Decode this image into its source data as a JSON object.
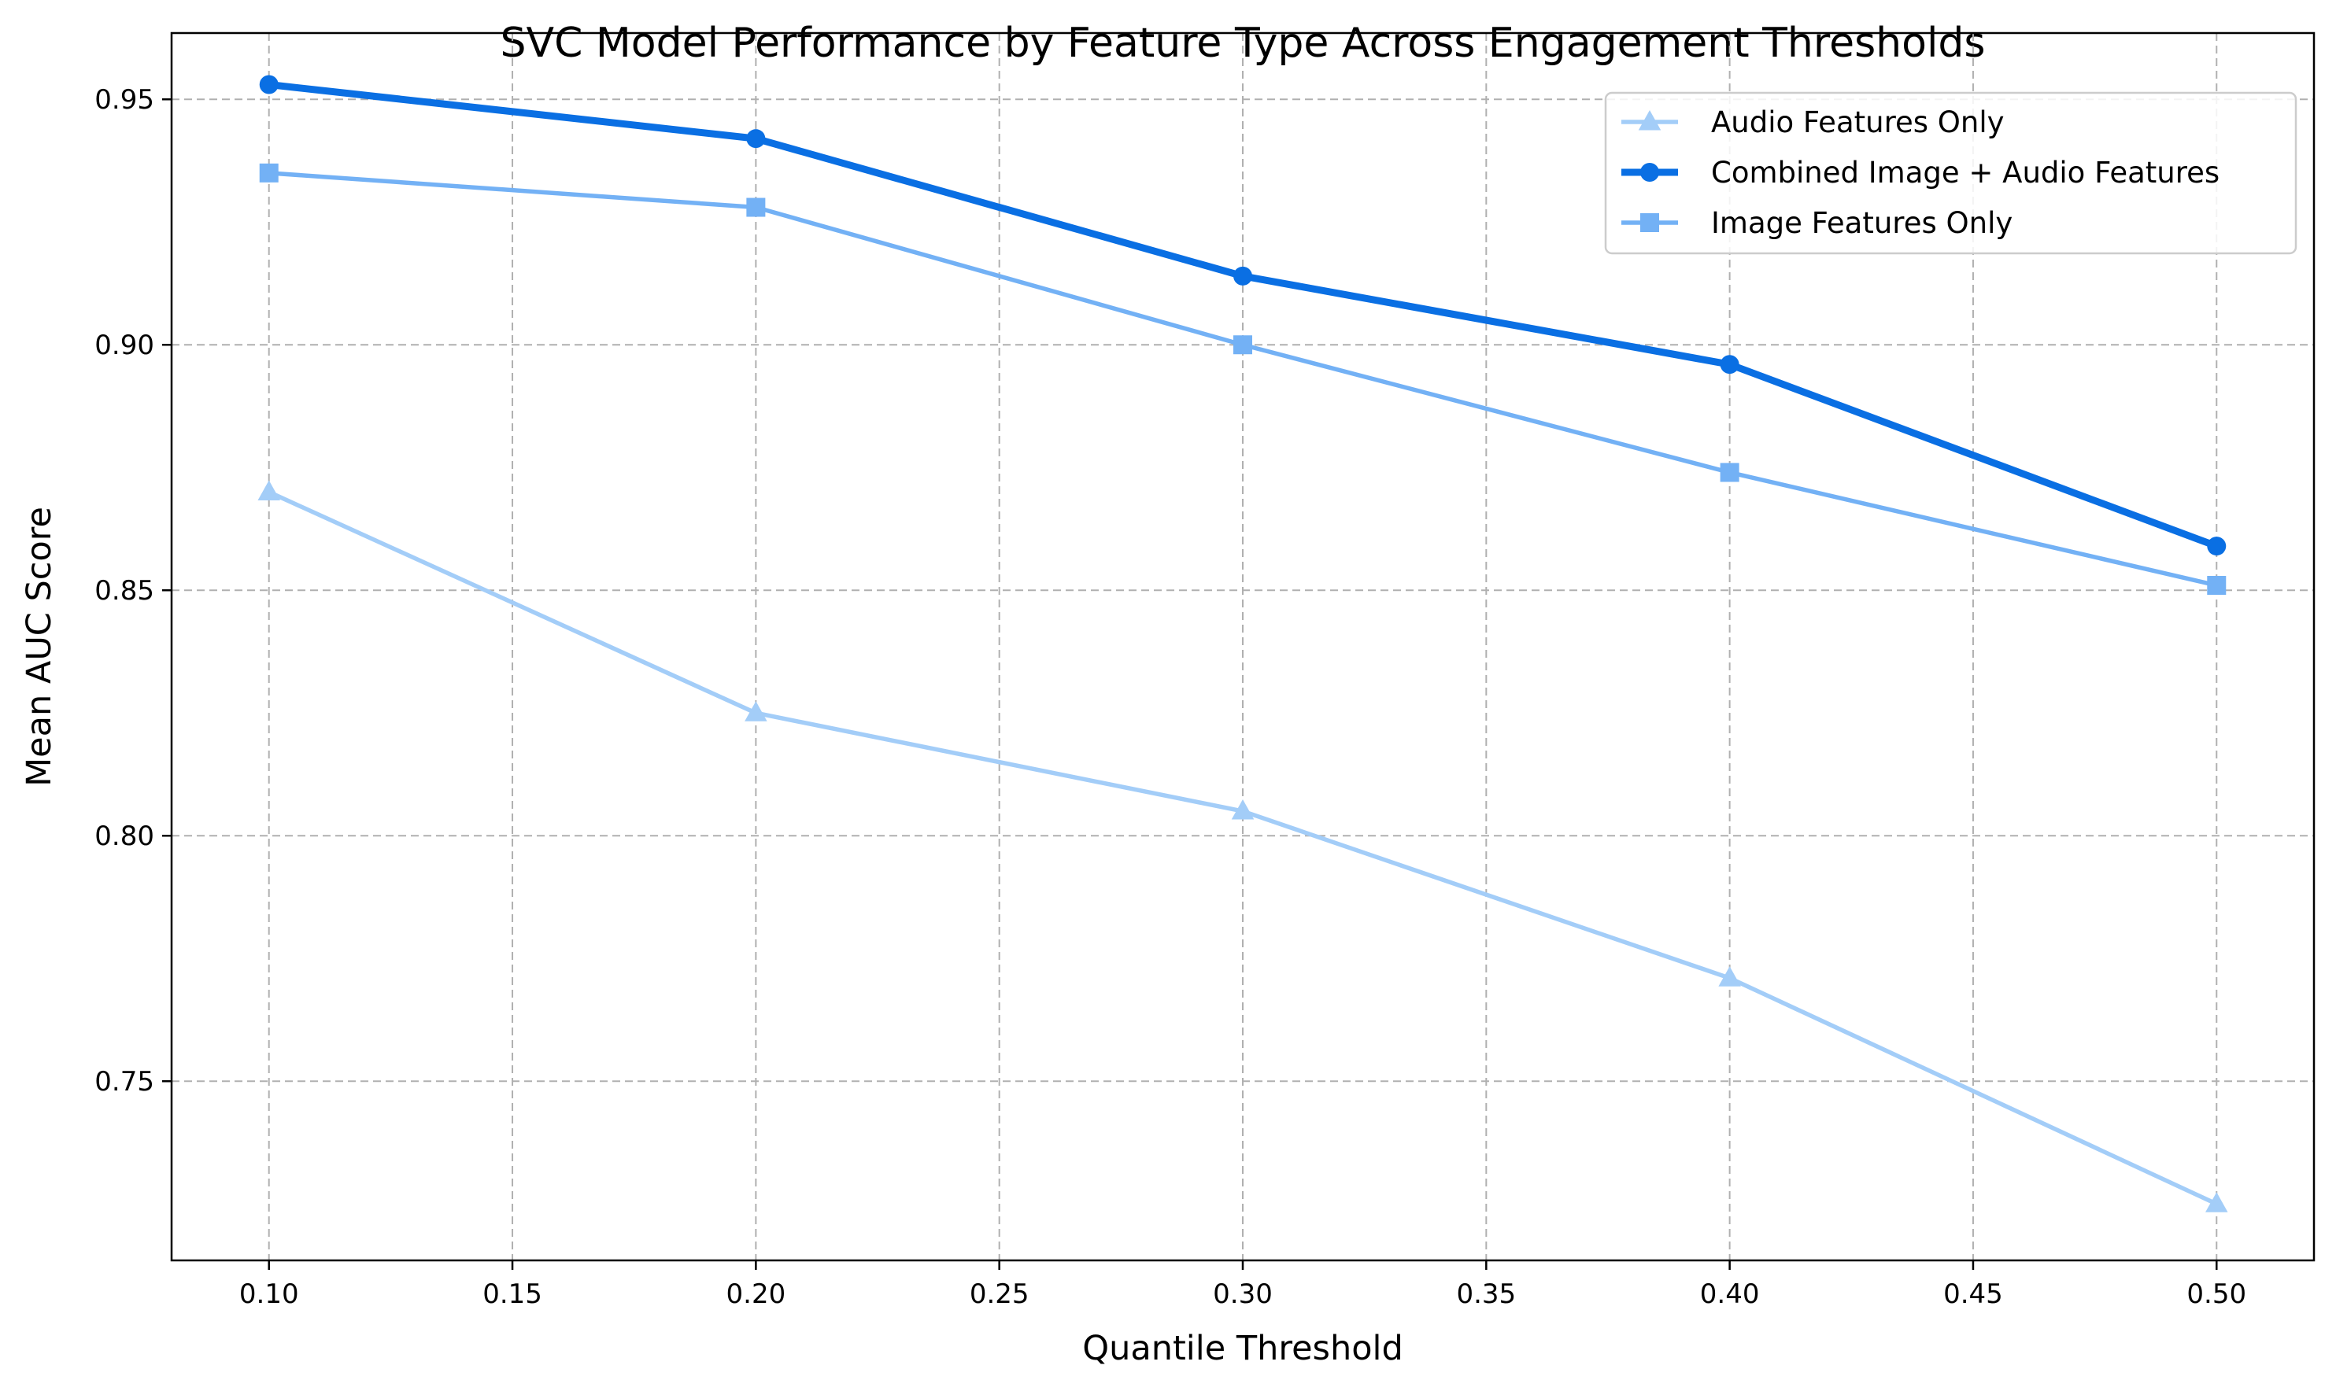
{
  "chart_data": {
    "type": "line",
    "title": "SVC Model Performance by Feature Type Across Engagement Thresholds",
    "xlabel": "Quantile Threshold",
    "ylabel": "Mean AUC Score",
    "x": [
      0.1,
      0.2,
      0.3,
      0.4,
      0.5
    ],
    "xlim": [
      0.08,
      0.52
    ],
    "ylim": [
      0.7135,
      0.9635
    ],
    "xticks": [
      "0.10",
      "0.15",
      "0.20",
      "0.25",
      "0.30",
      "0.35",
      "0.40",
      "0.45",
      "0.50"
    ],
    "xtick_values": [
      0.1,
      0.15,
      0.2,
      0.25,
      0.3,
      0.35,
      0.4,
      0.45,
      0.5
    ],
    "yticks": [
      "0.75",
      "0.80",
      "0.85",
      "0.90",
      "0.95"
    ],
    "ytick_values": [
      0.75,
      0.8,
      0.85,
      0.9,
      0.95
    ],
    "grid": true,
    "legend_position": "top-right",
    "series": [
      {
        "name": "Audio Features Only",
        "values": [
          0.87,
          0.825,
          0.805,
          0.771,
          0.725
        ],
        "color": "#a3cdf8",
        "marker": "triangle",
        "line_emphasis": "normal"
      },
      {
        "name": "Combined Image + Audio Features",
        "values": [
          0.953,
          0.942,
          0.914,
          0.896,
          0.859
        ],
        "color": "#0a6fe3",
        "marker": "circle",
        "line_emphasis": "bold"
      },
      {
        "name": "Image Features Only",
        "values": [
          0.935,
          0.928,
          0.9,
          0.874,
          0.851
        ],
        "color": "#73b1f5",
        "marker": "square",
        "line_emphasis": "normal"
      }
    ]
  }
}
